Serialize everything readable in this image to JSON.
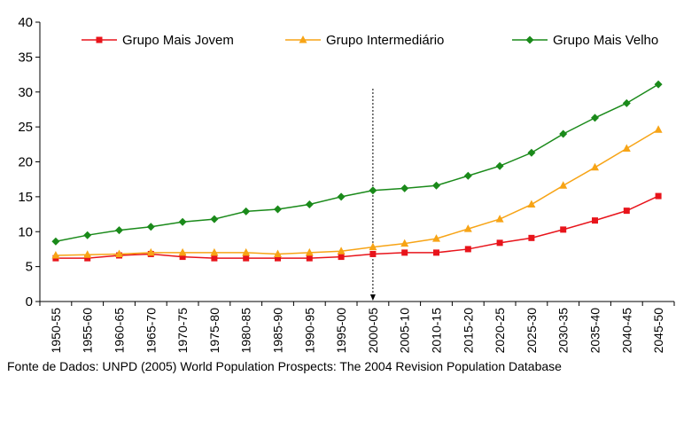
{
  "chart_data": {
    "type": "line",
    "categories": [
      "1950-55",
      "1955-60",
      "1960-65",
      "1965-70",
      "1970-75",
      "1975-80",
      "1980-85",
      "1985-90",
      "1990-95",
      "1995-00",
      "2000-05",
      "2005-10",
      "2010-15",
      "2015-20",
      "2020-25",
      "2025-30",
      "2030-35",
      "2035-40",
      "2040-45",
      "2045-50"
    ],
    "series": [
      {
        "name": "Grupo Mais Jovem",
        "color": "#e8141b",
        "marker": "square",
        "values": [
          6.2,
          6.2,
          6.6,
          6.8,
          6.4,
          6.2,
          6.2,
          6.2,
          6.2,
          6.4,
          6.8,
          7.0,
          7.0,
          7.5,
          8.4,
          9.1,
          10.3,
          11.6,
          13.0,
          15.1
        ]
      },
      {
        "name": "Grupo Intermediário",
        "color": "#f7a416",
        "marker": "triangle",
        "values": [
          6.6,
          6.7,
          6.8,
          7.0,
          7.0,
          7.0,
          7.0,
          6.8,
          7.0,
          7.2,
          7.8,
          8.3,
          9.0,
          10.4,
          11.8,
          13.9,
          16.6,
          19.2,
          21.9,
          24.6
        ]
      },
      {
        "name": "Grupo Mais Velho",
        "color": "#1a8a1a",
        "marker": "diamond",
        "values": [
          8.6,
          9.5,
          10.2,
          10.7,
          11.4,
          11.8,
          12.9,
          13.2,
          13.9,
          15.0,
          15.9,
          16.2,
          16.6,
          18.0,
          19.4,
          21.3,
          24.0,
          26.3,
          28.4,
          31.1
        ]
      }
    ],
    "ylim": [
      0,
      40
    ],
    "yticks": [
      0,
      5,
      10,
      15,
      20,
      25,
      30,
      35,
      40
    ],
    "vline": "2000-05",
    "source": "Fonte de Dados: UNPD (2005) World Population Prospects: The 2004 Revision Population Database"
  }
}
